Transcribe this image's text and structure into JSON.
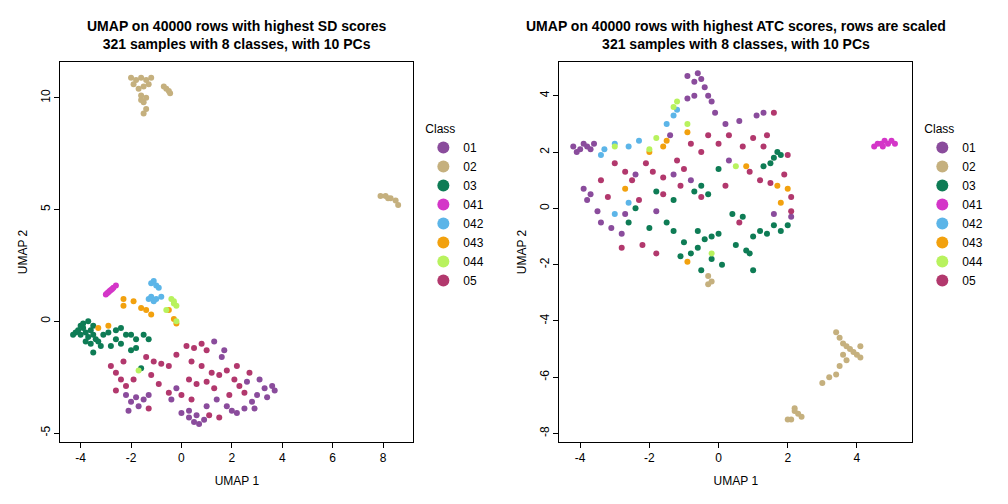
{
  "chart_data": [
    {
      "type": "scatter",
      "title": [
        "UMAP on 40000 rows with highest SD scores",
        "321 samples with 8 classes, with 10 PCs"
      ],
      "xlabel": "UMAP 1",
      "ylabel": "UMAP 2",
      "legend_title": "Class",
      "legend": "right",
      "marker": "circle",
      "grid": false,
      "xlim": [
        -4.8,
        9.2
      ],
      "xticks": [
        -4,
        -2,
        0,
        2,
        4,
        6,
        8
      ],
      "ylim": [
        -5.4,
        11.6
      ],
      "yticks": [
        -5,
        0,
        5,
        10
      ],
      "series": [
        {
          "name": "01",
          "color": "#8A4C9C",
          "x": [
            -2.2,
            -2.0,
            -1.8,
            -1.5,
            -1.3,
            -1.7,
            -2.1,
            0.3,
            0.5,
            0.7,
            0.9,
            0.6,
            0.3,
            1.0,
            1.4,
            1.8,
            2.0,
            2.2,
            2.5,
            2.8,
            3.0,
            3.3,
            3.6,
            3.7,
            3.4,
            3.1,
            2.6,
            2.9,
            -0.4,
            0.0,
            -0.2,
            1.7,
            1.3,
            1.6
          ],
          "y": [
            -3.3,
            -3.6,
            -3.4,
            -3.5,
            -3.3,
            -3.8,
            -4.0,
            -4.3,
            -4.5,
            -4.6,
            -4.4,
            -4.2,
            -4.0,
            -3.8,
            -3.5,
            -3.8,
            -4.0,
            -4.1,
            -3.9,
            -3.6,
            -3.3,
            -3.0,
            -2.9,
            -3.1,
            -3.4,
            -2.6,
            -2.7,
            -3.9,
            -3.5,
            -4.1,
            -3.0,
            -1.3,
            -0.9,
            -1.6
          ]
        },
        {
          "name": "02",
          "color": "#C5B07E",
          "x": [
            -2.0,
            -1.8,
            -1.6,
            -1.4,
            -1.2,
            -1.9,
            -1.7,
            -1.5,
            -1.3,
            -1.6,
            -1.5,
            -1.4,
            -1.6,
            -1.5,
            -1.4,
            -0.7,
            -0.6,
            -0.5,
            -0.45,
            7.9,
            8.1,
            8.3,
            8.5,
            8.6,
            8.2
          ],
          "y": [
            10.9,
            10.8,
            10.9,
            10.8,
            10.9,
            10.6,
            10.4,
            10.5,
            10.6,
            10.1,
            9.8,
            9.5,
            9.9,
            9.3,
            10.0,
            10.5,
            10.4,
            10.3,
            10.2,
            5.6,
            5.6,
            5.5,
            5.4,
            5.2,
            5.5
          ]
        },
        {
          "name": "03",
          "color": "#0E7C55",
          "x": [
            -4.2,
            -4.1,
            -4.0,
            -3.9,
            -3.8,
            -3.7,
            -3.6,
            -3.5,
            -3.4,
            -3.9,
            -3.7,
            -3.5,
            -3.3,
            -3.2,
            -3.5,
            -3.8,
            -4.0,
            -3.6,
            -2.9,
            -2.6,
            -2.4,
            -2.6,
            -2.4,
            -2.2,
            -2.0,
            -1.8,
            -1.5,
            -1.3,
            -2.0,
            -1.8,
            -1.6,
            -2.8,
            -4.3,
            -3.1
          ],
          "y": [
            -0.5,
            -0.4,
            -0.6,
            -0.3,
            -0.5,
            -0.7,
            -0.4,
            -0.6,
            -0.8,
            -0.1,
            0.0,
            -0.2,
            -0.9,
            -1.1,
            -1.4,
            -0.9,
            -0.2,
            -1.0,
            -0.5,
            -0.4,
            -0.3,
            -0.8,
            -1.0,
            -0.6,
            -0.6,
            -0.8,
            -0.6,
            -0.8,
            -1.3,
            -1.2,
            -2.1,
            -1.1,
            -0.6,
            -0.6
          ]
        },
        {
          "name": "041",
          "color": "#D436C8",
          "x": [
            -3.0,
            -2.9,
            -2.8,
            -2.7,
            -2.6,
            -2.85,
            -2.75,
            -2.95
          ],
          "y": [
            1.2,
            1.3,
            1.4,
            1.5,
            1.6,
            1.35,
            1.45,
            1.25
          ]
        },
        {
          "name": "042",
          "color": "#5CB5E8",
          "x": [
            -1.2,
            -1.0,
            -1.1,
            -0.9,
            -1.2,
            -1.0,
            -1.1,
            -1.3,
            -0.8
          ],
          "y": [
            1.7,
            1.6,
            1.8,
            1.5,
            1.1,
            1.0,
            0.9,
            1.0,
            1.1
          ]
        },
        {
          "name": "043",
          "color": "#F2A10E",
          "x": [
            -2.3,
            -2.3,
            -1.9,
            -1.6,
            -1.2,
            -2.9,
            -3.3,
            -0.3,
            -0.2,
            -1.4,
            -0.5
          ],
          "y": [
            1.0,
            0.7,
            0.9,
            0.6,
            0.3,
            -0.2,
            -0.3,
            0.1,
            -0.1,
            0.5,
            0.5
          ]
        },
        {
          "name": "044",
          "color": "#B8F25E",
          "x": [
            -0.4,
            -0.3,
            -0.2,
            -0.3,
            -0.6,
            -1.7,
            -0.2
          ],
          "y": [
            1.0,
            0.8,
            0.7,
            0.9,
            0.5,
            -2.2,
            0.0
          ]
        },
        {
          "name": "05",
          "color": "#B2386D",
          "x": [
            -2.8,
            -2.6,
            -2.4,
            -2.2,
            -2.6,
            -1.4,
            -1.1,
            -0.8,
            -0.5,
            -1.2,
            -0.9,
            -0.5,
            -1.3,
            -0.2,
            0.2,
            0.5,
            0.8,
            1.0,
            0.4,
            0.8,
            1.2,
            0.3,
            0.6,
            1.0,
            1.3,
            0.0,
            0.4,
            1.5,
            1.8,
            2.1,
            2.3,
            2.5,
            1.9,
            2.2,
            2.7,
            1.1,
            1.5,
            -1.9,
            -2.3
          ],
          "y": [
            -2.0,
            -2.3,
            -2.6,
            -2.9,
            -3.1,
            -1.6,
            -1.8,
            -1.9,
            -2.0,
            -2.4,
            -2.8,
            -3.2,
            -3.9,
            -1.5,
            -1.1,
            -1.2,
            -1.0,
            -1.3,
            -1.8,
            -2.0,
            -2.3,
            -2.6,
            -2.8,
            -2.7,
            -3.0,
            -3.3,
            -3.5,
            -2.4,
            -2.2,
            -2.6,
            -2.9,
            -3.2,
            -3.3,
            -2.0,
            -2.3,
            -4.2,
            -4.3,
            -2.6,
            -1.8
          ]
        }
      ]
    },
    {
      "type": "scatter",
      "title": [
        "UMAP on 40000 rows with highest ATC scores, rows are scaled",
        "321 samples with 8 classes, with 10 PCs"
      ],
      "xlabel": "UMAP 1",
      "ylabel": "UMAP 2",
      "legend_title": "Class",
      "legend": "right",
      "marker": "circle",
      "grid": false,
      "xlim": [
        -4.6,
        5.6
      ],
      "xticks": [
        -4,
        -2,
        0,
        2,
        4
      ],
      "ylim": [
        -8.3,
        5.2
      ],
      "yticks": [
        -8,
        -6,
        -4,
        -2,
        0,
        2,
        4
      ],
      "series": [
        {
          "name": "01",
          "color": "#8A4C9C",
          "x": [
            -4.2,
            -4.0,
            -3.8,
            -3.6,
            -3.7,
            -3.9,
            -4.1,
            -3.9,
            -3.7,
            -3.8,
            -3.5,
            -3.4,
            -3.1,
            -2.7,
            -2.4,
            -1.8,
            -0.7,
            -0.9,
            -0.6,
            -0.5,
            -0.4,
            -0.3,
            -0.2,
            -0.1,
            -0.7,
            -0.9,
            0.6,
            1.1,
            1.3,
            -1.4,
            0.3,
            -0.8,
            1.6,
            2.1,
            -2.8,
            -1.3,
            0.2
          ],
          "y": [
            2.2,
            2.1,
            2.2,
            2.3,
            2.1,
            2.3,
            2.0,
            0.7,
            0.5,
            0.3,
            -0.1,
            -0.5,
            -0.7,
            -0.2,
            1.2,
            -0.1,
            4.5,
            4.7,
            4.8,
            4.6,
            4.3,
            4.0,
            3.8,
            3.4,
            4.0,
            3.9,
            3.1,
            3.3,
            3.4,
            2.6,
            1.7,
            1.0,
            -0.2,
            -0.3,
            -0.9,
            1.2,
            3.0
          ]
        },
        {
          "name": "02",
          "color": "#C5B07E",
          "x": [
            3.4,
            3.5,
            3.6,
            3.7,
            3.8,
            3.9,
            4.0,
            4.1,
            3.7,
            3.6,
            3.5,
            3.4,
            3.2,
            3.0,
            2.2,
            2.3,
            2.1,
            2.0,
            2.4,
            2.2,
            -0.3,
            -0.2,
            -0.3,
            4.1
          ],
          "y": [
            -4.4,
            -4.6,
            -4.8,
            -4.9,
            -5.0,
            -5.1,
            -5.2,
            -5.3,
            -5.4,
            -5.2,
            -5.6,
            -5.9,
            -6.0,
            -6.2,
            -7.1,
            -7.3,
            -7.5,
            -7.5,
            -7.4,
            -7.2,
            -2.4,
            -2.6,
            -2.7,
            -4.9
          ]
        },
        {
          "name": "03",
          "color": "#0E7C55",
          "x": [
            1.7,
            1.6,
            1.8,
            1.5,
            1.3,
            0.0,
            -0.3,
            -0.5,
            -0.7,
            -1.3,
            -1.8,
            -2.4,
            -1.5,
            -1.3,
            -1.0,
            -0.6,
            -0.4,
            -0.2,
            0.0,
            -0.6,
            -0.2,
            0.1,
            -0.5,
            0.5,
            0.8,
            1.0,
            1.2,
            1.4,
            1.6,
            1.8,
            2.0,
            1.0,
            0.9,
            0.4,
            0.7,
            -0.8,
            -1.1,
            -2.0,
            -2.6
          ],
          "y": [
            2.0,
            1.8,
            1.9,
            1.6,
            1.5,
            1.4,
            0.5,
            0.8,
            0.6,
            0.3,
            0.6,
            0.0,
            -0.5,
            -0.8,
            -1.2,
            -0.8,
            -1.1,
            -1.0,
            -0.9,
            -1.4,
            -1.8,
            -2.0,
            -2.2,
            -1.3,
            -1.5,
            -1.0,
            -0.8,
            -0.9,
            -0.6,
            -0.8,
            -0.6,
            -2.2,
            -1.6,
            -0.2,
            -0.3,
            -1.6,
            -1.7,
            -0.7,
            -0.5
          ]
        },
        {
          "name": "041",
          "color": "#D436C8",
          "x": [
            4.5,
            4.6,
            4.7,
            4.8,
            4.9,
            5.0,
            5.1,
            4.75
          ],
          "y": [
            2.2,
            2.3,
            2.3,
            2.4,
            2.3,
            2.4,
            2.3,
            2.2
          ]
        },
        {
          "name": "042",
          "color": "#5CB5E8",
          "x": [
            -3.4,
            -3.3,
            -3.0,
            -2.6,
            -2.3,
            -1.5,
            -1.3,
            -1.2,
            -2.6,
            -3.0
          ],
          "y": [
            1.9,
            2.1,
            2.3,
            2.2,
            2.4,
            3.0,
            3.3,
            3.5,
            0.2,
            -0.2
          ]
        },
        {
          "name": "043",
          "color": "#F2A10E",
          "x": [
            -2.7,
            -1.6,
            -1.5,
            -0.9,
            0.8,
            1.7,
            1.8,
            -0.9,
            -2.0,
            2.0
          ],
          "y": [
            0.7,
            2.2,
            2.4,
            2.7,
            1.5,
            0.8,
            0.2,
            -1.9,
            2.0,
            0.7
          ]
        },
        {
          "name": "044",
          "color": "#B8F25E",
          "x": [
            -3.0,
            -2.0,
            -1.3,
            -1.2,
            -0.9,
            0.5,
            -1.8,
            -0.2
          ],
          "y": [
            2.2,
            2.1,
            3.6,
            3.8,
            3.0,
            1.5,
            2.5,
            -1.6
          ]
        },
        {
          "name": "05",
          "color": "#B2386D",
          "x": [
            -3.0,
            -2.7,
            -2.5,
            -2.1,
            -1.9,
            -1.6,
            -1.2,
            -1.0,
            -0.8,
            -0.5,
            -0.3,
            0.0,
            0.3,
            0.7,
            1.0,
            1.3,
            1.4,
            1.6,
            0.9,
            1.2,
            1.5,
            1.9,
            2.1,
            2.1,
            -1.1,
            -0.5,
            0.2,
            -2.2,
            -1.8,
            -2.8,
            -3.2,
            -1.6,
            -2.3,
            0.6,
            -3.4,
            2.0
          ],
          "y": [
            1.6,
            1.3,
            1.0,
            1.6,
            1.3,
            1.1,
            1.7,
            1.4,
            2.3,
            2.0,
            2.6,
            2.3,
            2.6,
            2.2,
            2.5,
            2.2,
            2.6,
            3.4,
            1.3,
            1.0,
            0.9,
            1.2,
            0.4,
            -0.1,
            0.8,
            0.4,
            0.8,
            -1.3,
            -1.6,
            -1.4,
            0.4,
            0.5,
            0.3,
            -0.5,
            1.0,
            1.9
          ]
        }
      ]
    }
  ]
}
